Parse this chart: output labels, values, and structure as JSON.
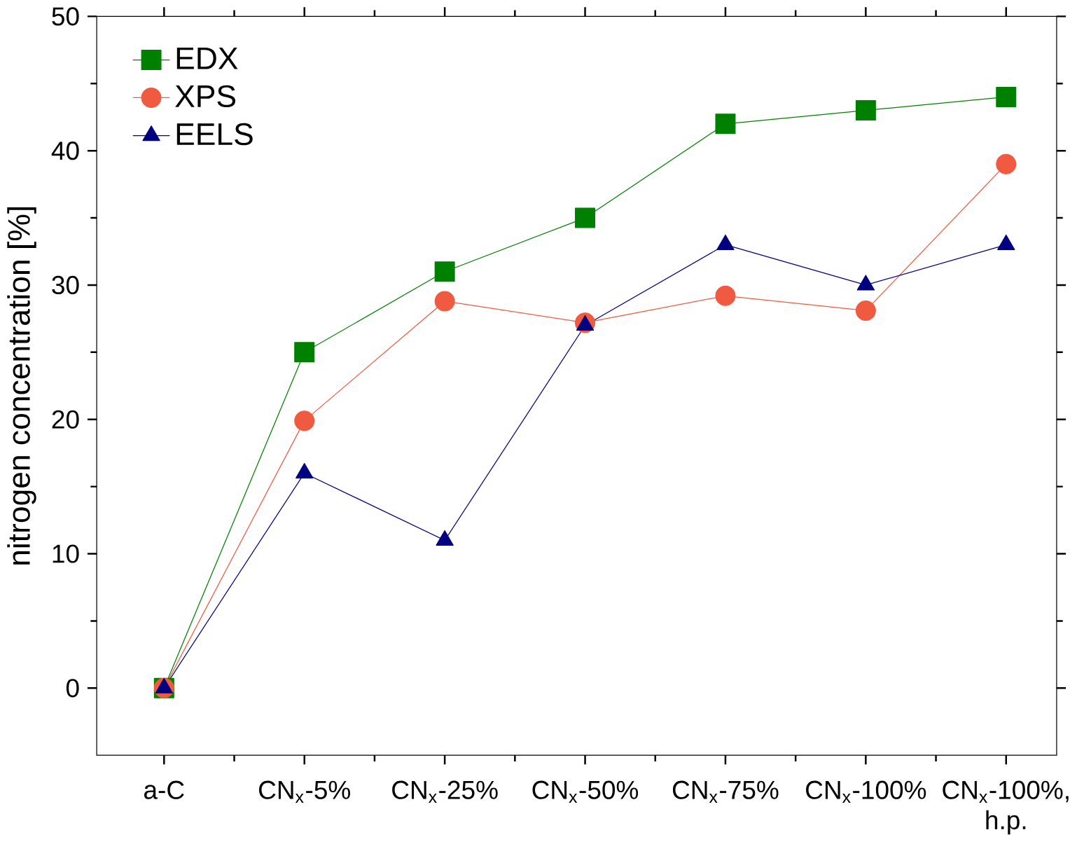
{
  "chart_data": {
    "type": "line",
    "ylabel": "nitrogen concentration [%]",
    "categories": [
      "a-C",
      "CN$_{x}$-5%",
      "CN$_{x}$-25%",
      "CN$_{x}$-50%",
      "CN$_{x}$-75%",
      "CN$_{x}$-100%",
      "CN$_{x}$-100%, h.p."
    ],
    "series": [
      {
        "name": "EDX",
        "color": "#008000",
        "marker": "square",
        "values": [
          0,
          25,
          31,
          35,
          42,
          43,
          44
        ]
      },
      {
        "name": "XPS",
        "color": "#f05a40",
        "marker": "circle",
        "values": [
          0,
          19.9,
          28.8,
          27.2,
          29.2,
          28.1,
          39
        ]
      },
      {
        "name": "EELS",
        "color": "#000080",
        "marker": "triangle",
        "values": [
          0,
          16,
          11,
          27,
          33,
          30,
          33
        ]
      }
    ],
    "ylim": [
      -5,
      50
    ],
    "yticks": [
      0,
      10,
      20,
      30,
      40,
      50
    ],
    "grid": false,
    "legend": "top left",
    "line_style": "solid"
  }
}
